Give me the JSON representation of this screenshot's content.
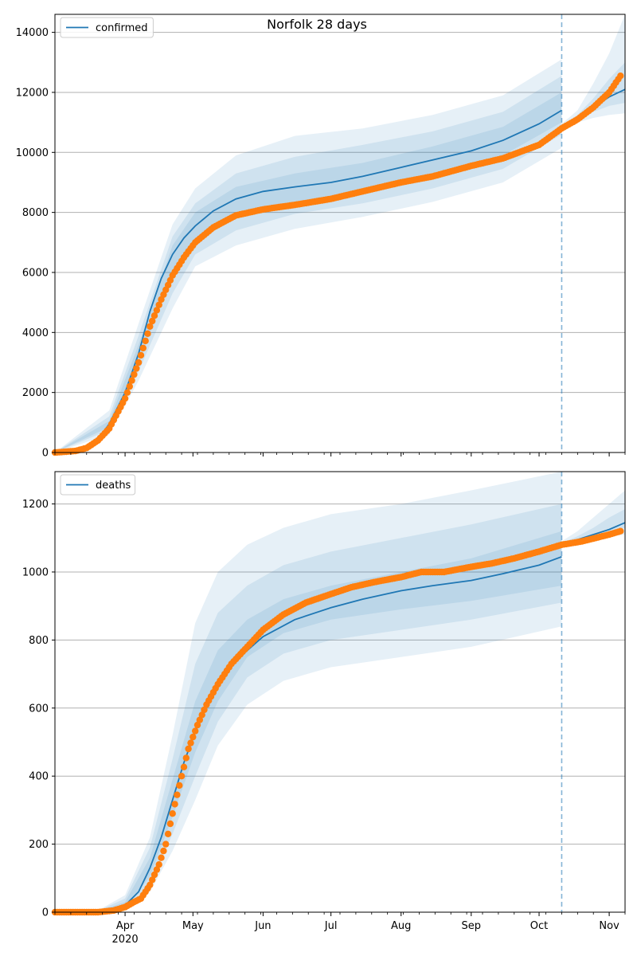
{
  "figure": {
    "title": "Norfolk 28 days"
  },
  "chart_data": [
    {
      "type": "line",
      "title": "Norfolk 28 days",
      "xlabel": "",
      "ylabel": "",
      "xlim": [
        "2020-03-01",
        "2020-11-08"
      ],
      "ylim": [
        0,
        14600
      ],
      "grid": "y",
      "legend": {
        "placement": "top-left",
        "entries": [
          "confirmed"
        ]
      },
      "x_ticks": [
        {
          "date": "2020-04-01",
          "label": "Apr",
          "sublabel": "2020"
        },
        {
          "date": "2020-05-01",
          "label": "May"
        },
        {
          "date": "2020-06-01",
          "label": "Jun"
        },
        {
          "date": "2020-07-01",
          "label": "Jul"
        },
        {
          "date": "2020-08-01",
          "label": "Aug"
        },
        {
          "date": "2020-09-01",
          "label": "Sep"
        },
        {
          "date": "2020-10-01",
          "label": "Oct"
        },
        {
          "date": "2020-11-01",
          "label": "Nov"
        }
      ],
      "y_ticks": [
        0,
        2000,
        4000,
        6000,
        8000,
        10000,
        12000,
        14000
      ],
      "forecast_start": "2020-10-11",
      "colors": {
        "model": "#1f77b4",
        "observed": "#ff7f0e",
        "band": "#1f77b4"
      },
      "series": [
        {
          "name": "confirmed",
          "kind": "model",
          "x": [
            "2020-03-01",
            "2020-03-10",
            "2020-03-15",
            "2020-03-20",
            "2020-03-25",
            "2020-04-01",
            "2020-04-07",
            "2020-04-12",
            "2020-04-17",
            "2020-04-22",
            "2020-04-27",
            "2020-05-02",
            "2020-05-10",
            "2020-05-20",
            "2020-06-01",
            "2020-06-15",
            "2020-07-01",
            "2020-07-15",
            "2020-08-01",
            "2020-08-15",
            "2020-09-01",
            "2020-09-15",
            "2020-10-01",
            "2020-10-11"
          ],
          "y": [
            0,
            80,
            200,
            450,
            950,
            2000,
            3300,
            4700,
            5800,
            6600,
            7150,
            7550,
            8050,
            8450,
            8700,
            8850,
            9000,
            9200,
            9500,
            9750,
            10050,
            10400,
            10950,
            11400
          ]
        },
        {
          "name": "",
          "kind": "projection",
          "x": [
            "2020-10-11",
            "2020-10-18",
            "2020-10-25",
            "2020-11-01",
            "2020-11-08"
          ],
          "y": [
            10850,
            11150,
            11500,
            11850,
            12100
          ]
        },
        {
          "name": "",
          "kind": "observed",
          "x": [
            "2020-03-01",
            "2020-03-10",
            "2020-03-15",
            "2020-03-20",
            "2020-03-25",
            "2020-04-01",
            "2020-04-07",
            "2020-04-12",
            "2020-04-17",
            "2020-04-22",
            "2020-04-27",
            "2020-05-02",
            "2020-05-10",
            "2020-05-20",
            "2020-06-01",
            "2020-06-15",
            "2020-07-01",
            "2020-07-15",
            "2020-08-01",
            "2020-08-15",
            "2020-09-01",
            "2020-09-15",
            "2020-10-01",
            "2020-10-11",
            "2020-10-18",
            "2020-10-25",
            "2020-11-01",
            "2020-11-06"
          ],
          "y": [
            0,
            50,
            150,
            400,
            800,
            1800,
            3000,
            4200,
            5100,
            5900,
            6500,
            7000,
            7500,
            7900,
            8100,
            8250,
            8450,
            8700,
            9000,
            9200,
            9550,
            9800,
            10250,
            10800,
            11100,
            11500,
            12000,
            12550
          ]
        }
      ],
      "bands": [
        {
          "level": "outer",
          "x": [
            "2020-03-01",
            "2020-03-25",
            "2020-04-07",
            "2020-04-22",
            "2020-05-02",
            "2020-05-20",
            "2020-06-15",
            "2020-07-15",
            "2020-08-15",
            "2020-09-15",
            "2020-10-11"
          ],
          "lower": [
            0,
            600,
            2400,
            4800,
            6200,
            6900,
            7450,
            7850,
            8350,
            9000,
            10150
          ],
          "upper": [
            0,
            1400,
            4300,
            7600,
            8800,
            9900,
            10550,
            10800,
            11250,
            11900,
            13100
          ]
        },
        {
          "level": "middle",
          "x": [
            "2020-03-01",
            "2020-03-25",
            "2020-04-07",
            "2020-04-22",
            "2020-05-02",
            "2020-05-20",
            "2020-06-15",
            "2020-07-15",
            "2020-08-15",
            "2020-09-15",
            "2020-10-11"
          ],
          "lower": [
            0,
            750,
            2700,
            5300,
            6600,
            7400,
            7950,
            8300,
            8800,
            9450,
            10600
          ],
          "upper": [
            0,
            1200,
            3900,
            7200,
            8300,
            9300,
            9850,
            10250,
            10700,
            11350,
            12550
          ]
        },
        {
          "level": "inner",
          "x": [
            "2020-03-01",
            "2020-03-25",
            "2020-04-07",
            "2020-04-22",
            "2020-05-02",
            "2020-05-20",
            "2020-06-15",
            "2020-07-15",
            "2020-08-15",
            "2020-09-15",
            "2020-10-11"
          ],
          "lower": [
            0,
            850,
            3000,
            5900,
            7050,
            7900,
            8350,
            8700,
            9250,
            9900,
            11000
          ],
          "upper": [
            0,
            1050,
            3600,
            6900,
            8000,
            8850,
            9300,
            9650,
            10200,
            10850,
            12000
          ]
        },
        {
          "level": "projection-outer",
          "x": [
            "2020-10-11",
            "2020-10-18",
            "2020-10-25",
            "2020-11-01",
            "2020-11-08"
          ],
          "lower": [
            10750,
            11000,
            11150,
            11250,
            11300
          ],
          "upper": [
            10950,
            11400,
            12300,
            13300,
            14600
          ]
        },
        {
          "level": "projection-inner",
          "x": [
            "2020-10-11",
            "2020-10-18",
            "2020-10-25",
            "2020-11-01",
            "2020-11-08"
          ],
          "lower": [
            10800,
            11100,
            11350,
            11550,
            11650
          ],
          "upper": [
            10900,
            11250,
            11800,
            12450,
            13000
          ]
        }
      ]
    },
    {
      "type": "line",
      "title": "",
      "xlabel": "",
      "ylabel": "",
      "xlim": [
        "2020-03-01",
        "2020-11-08"
      ],
      "ylim": [
        0,
        1295
      ],
      "grid": "y",
      "legend": {
        "placement": "top-left",
        "entries": [
          "deaths"
        ]
      },
      "x_ticks": [
        {
          "date": "2020-04-01",
          "label": "Apr",
          "sublabel": "2020"
        },
        {
          "date": "2020-05-01",
          "label": "May"
        },
        {
          "date": "2020-06-01",
          "label": "Jun"
        },
        {
          "date": "2020-07-01",
          "label": "Jul"
        },
        {
          "date": "2020-08-01",
          "label": "Aug"
        },
        {
          "date": "2020-09-01",
          "label": "Sep"
        },
        {
          "date": "2020-10-01",
          "label": "Oct"
        },
        {
          "date": "2020-11-01",
          "label": "Nov"
        }
      ],
      "y_ticks": [
        0,
        200,
        400,
        600,
        800,
        1000,
        1200
      ],
      "forecast_start": "2020-10-11",
      "colors": {
        "model": "#1f77b4",
        "observed": "#ff7f0e",
        "band": "#1f77b4"
      },
      "series": [
        {
          "name": "deaths",
          "kind": "model",
          "x": [
            "2020-03-01",
            "2020-03-20",
            "2020-04-01",
            "2020-04-07",
            "2020-04-12",
            "2020-04-17",
            "2020-04-22",
            "2020-04-27",
            "2020-05-02",
            "2020-05-07",
            "2020-05-12",
            "2020-05-20",
            "2020-06-01",
            "2020-06-15",
            "2020-07-01",
            "2020-07-15",
            "2020-08-01",
            "2020-08-15",
            "2020-09-01",
            "2020-09-15",
            "2020-10-01",
            "2020-10-11"
          ],
          "y": [
            0,
            2,
            20,
            60,
            130,
            220,
            330,
            440,
            530,
            610,
            670,
            740,
            810,
            860,
            895,
            920,
            945,
            960,
            975,
            995,
            1020,
            1045
          ]
        },
        {
          "name": "",
          "kind": "projection",
          "x": [
            "2020-10-11",
            "2020-10-18",
            "2020-10-25",
            "2020-11-01",
            "2020-11-08"
          ],
          "y": [
            1080,
            1095,
            1110,
            1125,
            1145
          ]
        },
        {
          "name": "",
          "kind": "observed",
          "x": [
            "2020-03-01",
            "2020-03-20",
            "2020-03-27",
            "2020-04-01",
            "2020-04-05",
            "2020-04-08",
            "2020-04-12",
            "2020-04-16",
            "2020-04-19",
            "2020-04-22",
            "2020-04-26",
            "2020-04-29",
            "2020-05-03",
            "2020-05-07",
            "2020-05-12",
            "2020-05-18",
            "2020-05-25",
            "2020-06-01",
            "2020-06-10",
            "2020-06-20",
            "2020-07-01",
            "2020-07-10",
            "2020-07-20",
            "2020-08-01",
            "2020-08-10",
            "2020-08-20",
            "2020-09-01",
            "2020-09-10",
            "2020-09-20",
            "2020-10-01",
            "2020-10-11",
            "2020-10-20",
            "2020-11-01",
            "2020-11-06"
          ],
          "y": [
            0,
            0,
            5,
            15,
            30,
            40,
            80,
            140,
            200,
            290,
            400,
            480,
            550,
            610,
            670,
            730,
            780,
            830,
            875,
            910,
            935,
            955,
            970,
            985,
            1000,
            1000,
            1015,
            1025,
            1040,
            1060,
            1080,
            1090,
            1110,
            1120
          ]
        }
      ],
      "bands": [
        {
          "level": "outer",
          "x": [
            "2020-03-01",
            "2020-03-20",
            "2020-04-01",
            "2020-04-12",
            "2020-04-22",
            "2020-05-02",
            "2020-05-12",
            "2020-05-25",
            "2020-06-10",
            "2020-07-01",
            "2020-08-01",
            "2020-09-01",
            "2020-10-11"
          ],
          "lower": [
            0,
            0,
            5,
            60,
            180,
            330,
            490,
            610,
            680,
            720,
            750,
            780,
            840
          ],
          "upper": [
            0,
            5,
            50,
            220,
            520,
            850,
            1000,
            1080,
            1130,
            1170,
            1200,
            1240,
            1295
          ]
        },
        {
          "level": "middle",
          "x": [
            "2020-03-01",
            "2020-03-20",
            "2020-04-01",
            "2020-04-12",
            "2020-04-22",
            "2020-05-02",
            "2020-05-12",
            "2020-05-25",
            "2020-06-10",
            "2020-07-01",
            "2020-08-01",
            "2020-09-01",
            "2020-10-11"
          ],
          "lower": [
            0,
            0,
            10,
            80,
            230,
            400,
            560,
            690,
            760,
            800,
            830,
            860,
            910
          ],
          "upper": [
            0,
            4,
            40,
            190,
            450,
            730,
            880,
            960,
            1020,
            1060,
            1100,
            1140,
            1200
          ]
        },
        {
          "level": "inner",
          "x": [
            "2020-03-01",
            "2020-03-20",
            "2020-04-01",
            "2020-04-12",
            "2020-04-22",
            "2020-05-02",
            "2020-05-12",
            "2020-05-25",
            "2020-06-10",
            "2020-07-01",
            "2020-08-01",
            "2020-09-01",
            "2020-10-11"
          ],
          "lower": [
            0,
            1,
            15,
            105,
            280,
            470,
            620,
            750,
            820,
            860,
            890,
            915,
            960
          ],
          "upper": [
            0,
            3,
            30,
            160,
            390,
            620,
            770,
            860,
            920,
            960,
            1000,
            1040,
            1120
          ]
        },
        {
          "level": "projection-outer",
          "x": [
            "2020-10-11",
            "2020-10-18",
            "2020-10-25",
            "2020-11-01",
            "2020-11-08"
          ],
          "lower": [
            1075,
            1085,
            1095,
            1105,
            1110
          ],
          "upper": [
            1090,
            1120,
            1160,
            1200,
            1240
          ]
        },
        {
          "level": "projection-inner",
          "x": [
            "2020-10-11",
            "2020-10-18",
            "2020-10-25",
            "2020-11-01",
            "2020-11-08"
          ],
          "lower": [
            1078,
            1092,
            1105,
            1118,
            1130
          ],
          "upper": [
            1085,
            1105,
            1130,
            1160,
            1185
          ]
        }
      ]
    }
  ]
}
